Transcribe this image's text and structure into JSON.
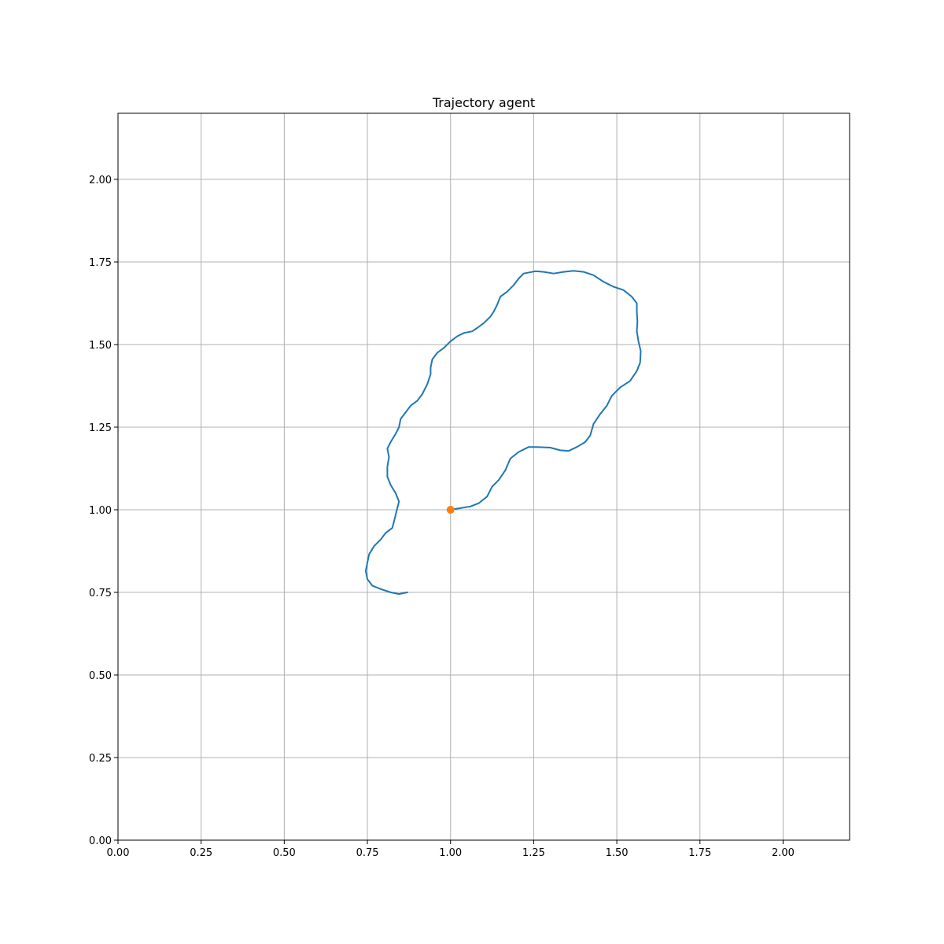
{
  "chart_data": {
    "type": "line",
    "title": "Trajectory agent",
    "xlabel": "",
    "ylabel": "",
    "xlim": [
      0.0,
      2.2
    ],
    "ylim": [
      0.0,
      2.2
    ],
    "grid": true,
    "x_ticks": [
      0.0,
      0.25,
      0.5,
      0.75,
      1.0,
      1.25,
      1.5,
      1.75,
      2.0
    ],
    "y_ticks": [
      0.0,
      0.25,
      0.5,
      0.75,
      1.0,
      1.25,
      1.5,
      1.75,
      2.0
    ],
    "x_tick_labels": [
      "0.00",
      "0.25",
      "0.50",
      "0.75",
      "1.00",
      "1.25",
      "1.50",
      "1.75",
      "2.00"
    ],
    "y_tick_labels": [
      "0.00",
      "0.25",
      "0.50",
      "0.75",
      "1.00",
      "1.25",
      "1.50",
      "1.75",
      "2.00"
    ],
    "series": [
      {
        "color": "#1f77b4",
        "points": [
          [
            1.0,
            1.0
          ],
          [
            1.03,
            1.005
          ],
          [
            1.06,
            1.01
          ],
          [
            1.085,
            1.02
          ],
          [
            1.11,
            1.04
          ],
          [
            1.125,
            1.07
          ],
          [
            1.145,
            1.09
          ],
          [
            1.165,
            1.12
          ],
          [
            1.18,
            1.155
          ],
          [
            1.205,
            1.175
          ],
          [
            1.235,
            1.19
          ],
          [
            1.26,
            1.19
          ],
          [
            1.3,
            1.188
          ],
          [
            1.33,
            1.18
          ],
          [
            1.355,
            1.178
          ],
          [
            1.38,
            1.19
          ],
          [
            1.405,
            1.205
          ],
          [
            1.42,
            1.225
          ],
          [
            1.43,
            1.26
          ],
          [
            1.45,
            1.29
          ],
          [
            1.47,
            1.315
          ],
          [
            1.485,
            1.345
          ],
          [
            1.51,
            1.37
          ],
          [
            1.54,
            1.39
          ],
          [
            1.56,
            1.42
          ],
          [
            1.57,
            1.445
          ],
          [
            1.572,
            1.48
          ],
          [
            1.565,
            1.51
          ],
          [
            1.56,
            1.54
          ],
          [
            1.562,
            1.57
          ],
          [
            1.56,
            1.6
          ],
          [
            1.56,
            1.625
          ],
          [
            1.545,
            1.645
          ],
          [
            1.52,
            1.665
          ],
          [
            1.49,
            1.675
          ],
          [
            1.46,
            1.69
          ],
          [
            1.43,
            1.71
          ],
          [
            1.4,
            1.72
          ],
          [
            1.37,
            1.723
          ],
          [
            1.34,
            1.72
          ],
          [
            1.31,
            1.715
          ],
          [
            1.28,
            1.72
          ],
          [
            1.255,
            1.722
          ],
          [
            1.22,
            1.715
          ],
          [
            1.205,
            1.7
          ],
          [
            1.19,
            1.68
          ],
          [
            1.17,
            1.66
          ],
          [
            1.15,
            1.645
          ],
          [
            1.14,
            1.62
          ],
          [
            1.13,
            1.6
          ],
          [
            1.12,
            1.585
          ],
          [
            1.1,
            1.565
          ],
          [
            1.08,
            1.55
          ],
          [
            1.065,
            1.54
          ],
          [
            1.04,
            1.535
          ],
          [
            1.02,
            1.525
          ],
          [
            1.0,
            1.51
          ],
          [
            0.98,
            1.49
          ],
          [
            0.96,
            1.475
          ],
          [
            0.945,
            1.455
          ],
          [
            0.94,
            1.43
          ],
          [
            0.94,
            1.41
          ],
          [
            0.93,
            1.38
          ],
          [
            0.915,
            1.35
          ],
          [
            0.9,
            1.33
          ],
          [
            0.88,
            1.315
          ],
          [
            0.865,
            1.295
          ],
          [
            0.85,
            1.275
          ],
          [
            0.845,
            1.25
          ],
          [
            0.835,
            1.23
          ],
          [
            0.82,
            1.205
          ],
          [
            0.81,
            1.185
          ],
          [
            0.815,
            1.16
          ],
          [
            0.81,
            1.13
          ],
          [
            0.81,
            1.1
          ],
          [
            0.82,
            1.075
          ],
          [
            0.835,
            1.05
          ],
          [
            0.845,
            1.025
          ],
          [
            0.84,
            1.005
          ],
          [
            0.835,
            0.985
          ],
          [
            0.83,
            0.965
          ],
          [
            0.825,
            0.945
          ],
          [
            0.805,
            0.93
          ],
          [
            0.79,
            0.91
          ],
          [
            0.77,
            0.89
          ],
          [
            0.755,
            0.865
          ],
          [
            0.75,
            0.84
          ],
          [
            0.745,
            0.815
          ],
          [
            0.75,
            0.79
          ],
          [
            0.765,
            0.77
          ],
          [
            0.79,
            0.76
          ],
          [
            0.82,
            0.75
          ],
          [
            0.845,
            0.745
          ],
          [
            0.87,
            0.75
          ]
        ]
      }
    ],
    "marker": {
      "x": 1.0,
      "y": 1.0,
      "color": "#ff7f0e"
    }
  }
}
